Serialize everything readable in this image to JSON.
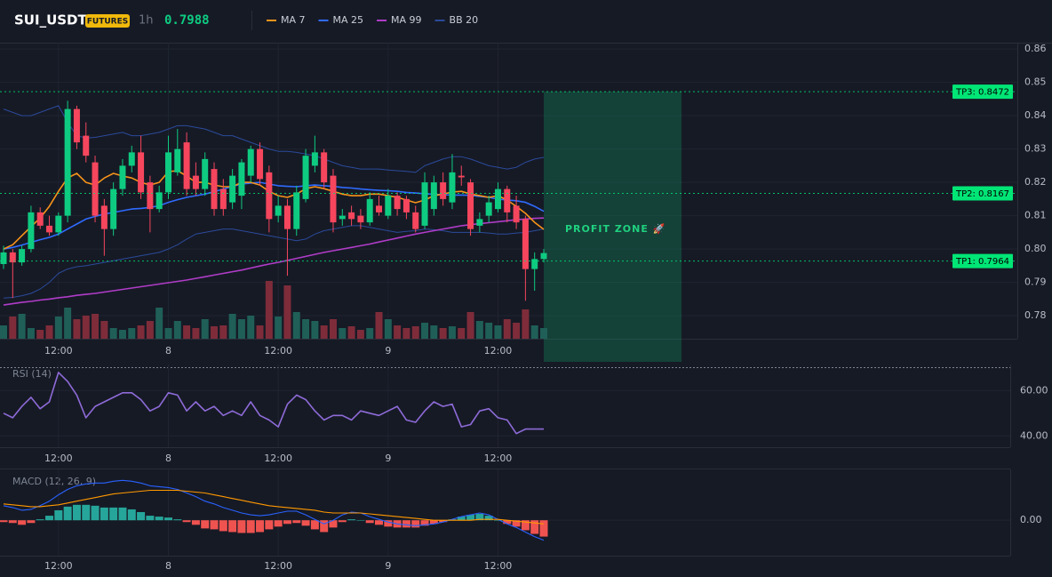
{
  "header": {
    "symbol": "SUI_USDT",
    "badge": "FUTURES",
    "interval": "1h",
    "price": "0.7988"
  },
  "chart_data": [
    {
      "type": "candlestick",
      "categories": [
        null,
        null,
        null,
        null,
        null,
        null,
        "12:00",
        null,
        null,
        null,
        null,
        null,
        null,
        null,
        null,
        null,
        null,
        null,
        "8",
        null,
        null,
        null,
        null,
        null,
        null,
        null,
        null,
        null,
        null,
        null,
        "12:00",
        null,
        null,
        null,
        null,
        null,
        null,
        null,
        null,
        null,
        null,
        null,
        "9",
        null,
        null,
        null,
        null,
        null,
        null,
        null,
        null,
        null,
        null,
        null,
        "12:00",
        null,
        null,
        null,
        null,
        null
      ],
      "open": [
        0.7955,
        0.799,
        0.796,
        0.8,
        0.811,
        0.807,
        0.805,
        0.81,
        0.842,
        0.834,
        0.826,
        0.813,
        0.806,
        0.818,
        0.825,
        0.829,
        0.82,
        0.812,
        0.817,
        0.823,
        0.832,
        0.822,
        0.818,
        0.824,
        0.818,
        0.814,
        0.816,
        0.822,
        0.83,
        0.823,
        0.81,
        0.813,
        0.806,
        0.815,
        0.825,
        0.829,
        0.822,
        0.809,
        0.811,
        0.81,
        0.808,
        0.813,
        0.81,
        0.816,
        0.815,
        0.811,
        0.807,
        0.812,
        0.82,
        0.814,
        0.822,
        0.82,
        0.807,
        0.81,
        0.812,
        0.818,
        0.813,
        0.809,
        0.794,
        0.797
      ],
      "high": [
        0.801,
        0.8,
        0.801,
        0.813,
        0.8125,
        0.81,
        0.811,
        0.8445,
        0.843,
        0.838,
        0.828,
        0.815,
        0.82,
        0.827,
        0.831,
        0.834,
        0.822,
        0.819,
        0.834,
        0.836,
        0.835,
        0.826,
        0.829,
        0.826,
        0.821,
        0.824,
        0.827,
        0.831,
        0.832,
        0.825,
        0.816,
        0.815,
        0.819,
        0.83,
        0.834,
        0.83,
        0.824,
        0.812,
        0.813,
        0.812,
        0.817,
        0.816,
        0.818,
        0.817,
        0.816,
        0.813,
        0.823,
        0.822,
        0.823,
        0.8285,
        0.825,
        0.821,
        0.811,
        0.816,
        0.82,
        0.819,
        0.816,
        0.81,
        0.799,
        0.8
      ],
      "low": [
        0.794,
        0.7853,
        0.795,
        0.799,
        0.806,
        0.804,
        0.804,
        0.808,
        0.83,
        0.826,
        0.808,
        0.798,
        0.804,
        0.816,
        0.823,
        0.815,
        0.805,
        0.811,
        0.815,
        0.822,
        0.816,
        0.816,
        0.816,
        0.81,
        0.81,
        0.812,
        0.812,
        0.82,
        0.819,
        0.805,
        0.808,
        0.792,
        0.804,
        0.814,
        0.823,
        0.818,
        0.805,
        0.807,
        0.807,
        0.806,
        0.807,
        0.81,
        0.809,
        0.81,
        0.809,
        0.805,
        0.806,
        0.81,
        0.813,
        0.812,
        0.819,
        0.804,
        0.805,
        0.808,
        0.811,
        0.808,
        0.806,
        0.7845,
        0.7875,
        0.796
      ],
      "close": [
        0.799,
        0.796,
        0.8,
        0.811,
        0.807,
        0.805,
        0.81,
        0.842,
        0.832,
        0.828,
        0.81,
        0.806,
        0.818,
        0.825,
        0.829,
        0.817,
        0.812,
        0.817,
        0.829,
        0.83,
        0.818,
        0.818,
        0.827,
        0.812,
        0.812,
        0.822,
        0.826,
        0.83,
        0.821,
        0.809,
        0.813,
        0.806,
        0.817,
        0.828,
        0.829,
        0.82,
        0.808,
        0.81,
        0.809,
        0.808,
        0.815,
        0.811,
        0.816,
        0.812,
        0.811,
        0.806,
        0.82,
        0.82,
        0.815,
        0.823,
        0.8215,
        0.806,
        0.809,
        0.814,
        0.818,
        0.811,
        0.808,
        0.794,
        0.797,
        0.7988
      ],
      "up_color": "#0ecb81",
      "down_color": "#f6465d",
      "ylim": [
        0.7731,
        0.8619
      ],
      "yticks": [
        0.78,
        0.79,
        {
          "value": 0.8,
          "label": "0.80"
        },
        0.81,
        0.82,
        0.83,
        0.84,
        0.85,
        0.86
      ],
      "grid": true,
      "series": [
        {
          "name": "MA 7",
          "color": "#f7931a",
          "values": [
            0.8,
            0.8013,
            0.804,
            0.8067,
            0.8093,
            0.8128,
            0.8173,
            0.8213,
            0.8227,
            0.82,
            0.8192,
            0.8213,
            0.8227,
            0.8219,
            0.8213,
            0.82,
            0.8192,
            0.82,
            0.8232,
            0.8235,
            0.8219,
            0.82,
            0.82,
            0.8192,
            0.8187,
            0.8187,
            0.82,
            0.82,
            0.8192,
            0.8173,
            0.816,
            0.8155,
            0.8165,
            0.8181,
            0.8187,
            0.8181,
            0.8173,
            0.8165,
            0.816,
            0.816,
            0.8165,
            0.8165,
            0.816,
            0.8155,
            0.8147,
            0.8139,
            0.8147,
            0.816,
            0.8165,
            0.8171,
            0.8173,
            0.8165,
            0.816,
            0.8155,
            0.816,
            0.8147,
            0.8128,
            0.8107,
            0.808,
            0.8059
          ]
        },
        {
          "name": "MA 25",
          "color": "#2f6bff",
          "values": [
            0.8,
            0.8005,
            0.8012,
            0.802,
            0.8028,
            0.8035,
            0.8045,
            0.806,
            0.8075,
            0.809,
            0.8098,
            0.8105,
            0.811,
            0.8115,
            0.812,
            0.8122,
            0.8125,
            0.813,
            0.814,
            0.8148,
            0.8155,
            0.816,
            0.8165,
            0.8172,
            0.818,
            0.8188,
            0.8195,
            0.8198,
            0.82,
            0.8195,
            0.819,
            0.8188,
            0.8187,
            0.819,
            0.8192,
            0.819,
            0.8188,
            0.8185,
            0.8183,
            0.818,
            0.8178,
            0.8176,
            0.8175,
            0.8173,
            0.817,
            0.8168,
            0.8166,
            0.8164,
            0.8163,
            0.8162,
            0.8162,
            0.8161,
            0.8158,
            0.8155,
            0.815,
            0.8147,
            0.8145,
            0.814,
            0.8128,
            0.8113
          ]
        },
        {
          "name": "MA 99",
          "color": "#b03cc8",
          "values": [
            0.7832,
            0.7836,
            0.784,
            0.7843,
            0.7847,
            0.785,
            0.7854,
            0.7857,
            0.7861,
            0.7864,
            0.7867,
            0.7871,
            0.7875,
            0.7879,
            0.7883,
            0.7887,
            0.7891,
            0.7895,
            0.7899,
            0.7903,
            0.7907,
            0.7912,
            0.7917,
            0.7922,
            0.7927,
            0.7932,
            0.7937,
            0.7943,
            0.7949,
            0.7955,
            0.796,
            0.7966,
            0.7972,
            0.7978,
            0.7984,
            0.799,
            0.7995,
            0.8,
            0.8005,
            0.801,
            0.8015,
            0.8021,
            0.8027,
            0.8033,
            0.8039,
            0.8045,
            0.805,
            0.8055,
            0.806,
            0.8065,
            0.807,
            0.8073,
            0.8076,
            0.8079,
            0.8082,
            0.8085,
            0.8088,
            0.809,
            0.8092,
            0.8093
          ]
        }
      ],
      "bands": {
        "name": "BB 20",
        "color": "#2b4a9a",
        "upper": [
          0.842,
          0.841,
          0.84,
          0.84,
          0.841,
          0.842,
          0.843,
          0.838,
          0.834,
          0.8333,
          0.8335,
          0.834,
          0.8345,
          0.835,
          0.834,
          0.834,
          0.8345,
          0.835,
          0.836,
          0.837,
          0.837,
          0.8365,
          0.836,
          0.835,
          0.834,
          0.834,
          0.833,
          0.832,
          0.831,
          0.83,
          0.8293,
          0.8293,
          0.829,
          0.8285,
          0.828,
          0.827,
          0.826,
          0.825,
          0.8245,
          0.824,
          0.824,
          0.824,
          0.8237,
          0.8235,
          0.8233,
          0.823,
          0.825,
          0.826,
          0.827,
          0.8277,
          0.8277,
          0.827,
          0.826,
          0.825,
          0.8245,
          0.824,
          0.8245,
          0.826,
          0.827,
          0.8275
        ],
        "lower": [
          0.7853,
          0.7855,
          0.786,
          0.7867,
          0.788,
          0.79,
          0.7927,
          0.794,
          0.7947,
          0.795,
          0.7955,
          0.796,
          0.7965,
          0.797,
          0.7975,
          0.798,
          0.7985,
          0.799,
          0.8,
          0.8013,
          0.803,
          0.8045,
          0.805,
          0.8055,
          0.806,
          0.806,
          0.8055,
          0.805,
          0.8045,
          0.804,
          0.8035,
          0.803,
          0.8025,
          0.803,
          0.8045,
          0.8055,
          0.806,
          0.8065,
          0.807,
          0.807,
          0.8065,
          0.806,
          0.8055,
          0.805,
          0.8053,
          0.8055,
          0.806,
          0.8058,
          0.8055,
          0.805,
          0.805,
          0.805,
          0.805,
          0.8048,
          0.8045,
          0.8045,
          0.8048,
          0.805,
          0.8055,
          0.806
        ]
      },
      "volume": {
        "up_color": "#1f5f58",
        "down_color": "#7e2c3a",
        "vlim": [
          0,
          100
        ],
        "values": [
          15,
          25,
          28,
          12,
          10,
          15,
          25,
          35,
          22,
          26,
          28,
          20,
          12,
          10,
          12,
          15,
          20,
          35,
          12,
          20,
          15,
          12,
          22,
          14,
          15,
          28,
          22,
          26,
          15,
          65,
          25,
          60,
          30,
          22,
          20,
          15,
          22,
          12,
          14,
          10,
          12,
          30,
          22,
          15,
          12,
          14,
          18,
          15,
          12,
          14,
          12,
          30,
          20,
          18,
          15,
          22,
          18,
          33,
          15,
          12
        ]
      },
      "annotations": [
        {
          "label": "TP3: 0.8472",
          "value": 0.8472,
          "color": "#00e676"
        },
        {
          "label": "TP2: 0.8167",
          "value": 0.8167,
          "color": "#00e676"
        },
        {
          "label": "TP1: 0.7964",
          "value": 0.7964,
          "color": "#00e676"
        }
      ],
      "zone": {
        "label": "PROFIT ZONE 🚀",
        "color": "#0ecb81"
      }
    },
    {
      "type": "line",
      "title": "RSI (14)",
      "categories": [
        null,
        null,
        null,
        null,
        null,
        null,
        "12:00",
        null,
        null,
        null,
        null,
        null,
        null,
        null,
        null,
        null,
        null,
        null,
        "8",
        null,
        null,
        null,
        null,
        null,
        null,
        null,
        null,
        null,
        null,
        null,
        "12:00",
        null,
        null,
        null,
        null,
        null,
        null,
        null,
        null,
        null,
        null,
        null,
        "9",
        null,
        null,
        null,
        null,
        null,
        null,
        null,
        null,
        null,
        null,
        null,
        "12:00",
        null,
        null,
        null,
        null,
        null
      ],
      "ylim": [
        35,
        71.5
      ],
      "yticks": [
        {
          "value": 40,
          "label": "40.00"
        },
        {
          "value": 60,
          "label": "60.00"
        }
      ],
      "series": [
        {
          "color": "#8e6bd8",
          "values": [
            50,
            48,
            53,
            57,
            52,
            55,
            68,
            64,
            58,
            48,
            53,
            55,
            57,
            59,
            59,
            56,
            51,
            53,
            59,
            58,
            51,
            55,
            51,
            53,
            49,
            51,
            49,
            55,
            49,
            47,
            44,
            54,
            58,
            56,
            51,
            47,
            49,
            49,
            47,
            51,
            50,
            49,
            51,
            53,
            47,
            46,
            51,
            55,
            53,
            54,
            44,
            45,
            51,
            52,
            48,
            47,
            41,
            43,
            43,
            43
          ]
        }
      ]
    },
    {
      "type": "combo",
      "title": "MACD (12, 26, 9)",
      "categories": [
        null,
        null,
        null,
        null,
        null,
        null,
        "12:00",
        null,
        null,
        null,
        null,
        null,
        null,
        null,
        null,
        null,
        null,
        null,
        "8",
        null,
        null,
        null,
        null,
        null,
        null,
        null,
        null,
        null,
        null,
        null,
        "12:00",
        null,
        null,
        null,
        null,
        null,
        null,
        null,
        null,
        null,
        null,
        null,
        "9",
        null,
        null,
        null,
        null,
        null,
        null,
        null,
        null,
        null,
        null,
        null,
        "12:00",
        null,
        null,
        null,
        null,
        null
      ],
      "ylim": [
        -0.0039,
        0.0056
      ],
      "yticks": [
        {
          "value": 0,
          "label": "0.00"
        }
      ],
      "series": [
        {
          "style": "bar",
          "up_color": "#26a69a",
          "down_color": "#ef5350",
          "values": [
            -0.0002,
            -0.0003,
            -0.0005,
            -0.0003,
            0.0001,
            0.0005,
            0.0011,
            0.0015,
            0.0017,
            0.0017,
            0.0016,
            0.0014,
            0.0014,
            0.0014,
            0.0012,
            0.0009,
            0.0005,
            0.0004,
            0.0003,
            0.0001,
            -0.0002,
            -0.0005,
            -0.0009,
            -0.001,
            -0.0012,
            -0.0013,
            -0.0014,
            -0.0014,
            -0.0013,
            -0.001,
            -0.0007,
            -0.0004,
            -0.0003,
            -0.0006,
            -0.001,
            -0.0013,
            -0.0008,
            -0.0002,
            0.0001,
            0,
            -0.0003,
            -0.0005,
            -0.0007,
            -0.0008,
            -0.0008,
            -0.0008,
            -0.0006,
            -0.0004,
            -0.0002,
            0.0001,
            0.0004,
            0.0006,
            0.0007,
            0.0005,
            0,
            -0.0004,
            -0.0007,
            -0.0011,
            -0.0015,
            -0.0018
          ]
        },
        {
          "style": "line",
          "color": "#2962ff",
          "values": [
            0.0016,
            0.0014,
            0.0011,
            0.0012,
            0.0016,
            0.0021,
            0.0028,
            0.0034,
            0.0038,
            0.004,
            0.0041,
            0.0041,
            0.0043,
            0.0044,
            0.0043,
            0.0041,
            0.0038,
            0.0037,
            0.0036,
            0.0034,
            0.003,
            0.0026,
            0.0021,
            0.0018,
            0.0014,
            0.0011,
            0.0008,
            0.0006,
            0.0005,
            0.0006,
            0.0008,
            0.001,
            0.001,
            0.0006,
            0.0001,
            -0.0004,
            0,
            0.0006,
            0.0009,
            0.0008,
            0.0004,
            0.0001,
            -0.0002,
            -0.0004,
            -0.0005,
            -0.0006,
            -0.0005,
            -0.0004,
            -0.0002,
            0.0001,
            0.0004,
            0.0006,
            0.0008,
            0.0006,
            0.0001,
            -0.0004,
            -0.0008,
            -0.0013,
            -0.0018,
            -0.0022
          ]
        },
        {
          "style": "line",
          "color": "#ff9800",
          "values": [
            0.0018,
            0.0017,
            0.0016,
            0.0015,
            0.0015,
            0.0016,
            0.0017,
            0.0019,
            0.0021,
            0.0023,
            0.0025,
            0.0027,
            0.0029,
            0.003,
            0.0031,
            0.0032,
            0.0033,
            0.0033,
            0.0033,
            0.0033,
            0.0032,
            0.0031,
            0.003,
            0.0028,
            0.0026,
            0.0024,
            0.0022,
            0.002,
            0.0018,
            0.0016,
            0.0015,
            0.0014,
            0.0013,
            0.0012,
            0.0011,
            0.0009,
            0.0008,
            0.0008,
            0.0008,
            0.0008,
            0.0007,
            0.0006,
            0.0005,
            0.0004,
            0.0003,
            0.0002,
            0.0001,
            0,
            0,
            0,
            0,
            0,
            0.0001,
            0.0001,
            0.0001,
            0,
            -0.0001,
            -0.0002,
            -0.0003,
            -0.0004
          ]
        }
      ]
    }
  ]
}
